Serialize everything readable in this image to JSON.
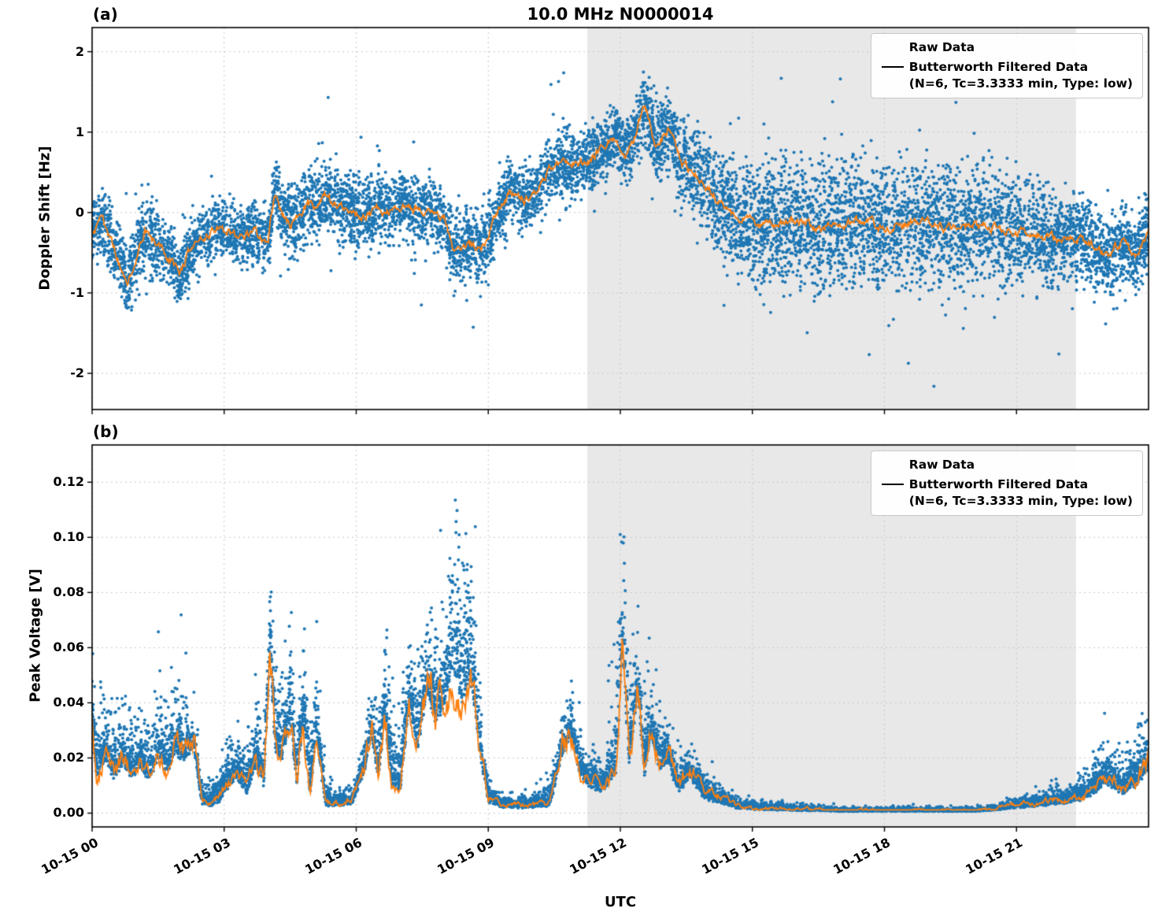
{
  "figure_title": "10.0 MHz N0000014",
  "xlabel": "UTC",
  "chart_data": [
    {
      "id": "a",
      "type": "scatter+line",
      "panel_label": "(a)",
      "title": "10.0 MHz N0000014",
      "ylabel": "Doppler Shift [Hz]",
      "xlabel": "",
      "xlim": [
        0,
        24
      ],
      "ylim": [
        -2.45,
        2.3
      ],
      "yticks": [
        -2,
        -1,
        0,
        1,
        2
      ],
      "ytick_labels": [
        "-2",
        "-1",
        "0",
        "1",
        "2"
      ],
      "xticks": [
        0,
        3,
        6,
        9,
        12,
        15,
        18,
        21
      ],
      "xtick_labels": [
        "10-15 00",
        "10-15 03",
        "10-15 06",
        "10-15 09",
        "10-15 12",
        "10-15 15",
        "10-15 18",
        "10-15 21"
      ],
      "grid": true,
      "legend_loc": "upper right",
      "shaded_region": {
        "start_h": 11.25,
        "end_h": 22.35
      },
      "legend": {
        "raw_label": "Raw Data",
        "filtered_label_line1": "Butterworth Filtered Data",
        "filtered_label_line2": "(N=6, Tc=3.3333 min, Type: low)"
      },
      "colors": {
        "raw": "#1f77b4",
        "filtered": "#ff7f0e",
        "shade": "rgba(128,128,128,0.18)",
        "grid": "#c8c8c8"
      },
      "line": {
        "t": [
          0.0,
          0.25,
          0.5,
          0.8,
          1.0,
          1.2,
          1.5,
          1.8,
          2.0,
          2.2,
          2.5,
          2.8,
          3.1,
          3.4,
          3.7,
          4.0,
          4.15,
          4.3,
          4.5,
          4.7,
          4.9,
          5.1,
          5.3,
          5.6,
          5.9,
          6.2,
          6.5,
          6.8,
          7.1,
          7.4,
          7.7,
          8.0,
          8.2,
          8.5,
          8.8,
          9.0,
          9.2,
          9.5,
          9.8,
          10.1,
          10.4,
          10.7,
          11.0,
          11.3,
          11.6,
          11.9,
          12.1,
          12.3,
          12.55,
          12.8,
          13.1,
          13.4,
          13.7,
          14.0,
          14.3,
          14.6,
          15.0,
          15.5,
          16.0,
          16.5,
          17.0,
          17.5,
          18.0,
          18.5,
          19.0,
          19.5,
          20.0,
          20.5,
          21.0,
          21.5,
          22.0,
          22.4,
          22.8,
          23.1,
          23.4,
          23.7,
          24.0
        ],
        "v": [
          -0.25,
          -0.1,
          -0.45,
          -0.9,
          -0.55,
          -0.25,
          -0.4,
          -0.6,
          -0.75,
          -0.5,
          -0.3,
          -0.2,
          -0.25,
          -0.3,
          -0.25,
          -0.35,
          0.3,
          0.0,
          -0.15,
          -0.05,
          0.15,
          0.05,
          0.2,
          0.1,
          0.0,
          -0.05,
          0.05,
          0.0,
          0.1,
          0.05,
          0.0,
          -0.1,
          -0.45,
          -0.4,
          -0.45,
          -0.3,
          0.0,
          0.25,
          0.15,
          0.3,
          0.55,
          0.65,
          0.6,
          0.65,
          0.8,
          0.95,
          0.75,
          0.9,
          1.35,
          0.85,
          1.05,
          0.6,
          0.5,
          0.3,
          0.1,
          -0.05,
          -0.1,
          -0.15,
          -0.1,
          -0.2,
          -0.15,
          -0.1,
          -0.2,
          -0.15,
          -0.1,
          -0.2,
          -0.15,
          -0.2,
          -0.25,
          -0.3,
          -0.35,
          -0.3,
          -0.45,
          -0.55,
          -0.35,
          -0.6,
          -0.25
        ]
      },
      "scatter_envelope": {
        "t": [
          0,
          1,
          2,
          3,
          4,
          5,
          6,
          7,
          8,
          9,
          10,
          11,
          12,
          12.6,
          13,
          14,
          15,
          16,
          17,
          18,
          19,
          20,
          21,
          22,
          23,
          24
        ],
        "spread": [
          0.25,
          0.35,
          0.3,
          0.25,
          0.3,
          0.35,
          0.35,
          0.3,
          0.3,
          0.35,
          0.3,
          0.3,
          0.3,
          0.35,
          0.35,
          0.45,
          0.55,
          0.55,
          0.55,
          0.55,
          0.55,
          0.55,
          0.5,
          0.4,
          0.35,
          0.35
        ]
      },
      "scatter_count": 9500,
      "line_noise": 0.07
    },
    {
      "id": "b",
      "type": "scatter+line",
      "panel_label": "(b)",
      "title": "",
      "ylabel": "Peak Voltage [V]",
      "xlabel": "UTC",
      "xlim": [
        0,
        24
      ],
      "ylim": [
        -0.005,
        0.1335
      ],
      "yticks": [
        0.0,
        0.02,
        0.04,
        0.06,
        0.08,
        0.1,
        0.12
      ],
      "ytick_labels": [
        "0.00",
        "0.02",
        "0.04",
        "0.06",
        "0.08",
        "0.10",
        "0.12"
      ],
      "xticks": [
        0,
        3,
        6,
        9,
        12,
        15,
        18,
        21
      ],
      "xtick_labels": [
        "10-15 00",
        "10-15 03",
        "10-15 06",
        "10-15 09",
        "10-15 12",
        "10-15 15",
        "10-15 18",
        "10-15 21"
      ],
      "grid": true,
      "legend_loc": "upper right",
      "shaded_region": {
        "start_h": 11.25,
        "end_h": 22.35
      },
      "legend": {
        "raw_label": "Raw Data",
        "filtered_label_line1": "Butterworth Filtered Data",
        "filtered_label_line2": "(N=6, Tc=3.3333 min, Type: low)"
      },
      "colors": {
        "raw": "#1f77b4",
        "filtered": "#ff7f0e",
        "shade": "rgba(128,128,128,0.18)",
        "grid": "#c8c8c8"
      },
      "line": {
        "t": [
          0.0,
          0.1,
          0.3,
          0.5,
          0.7,
          0.9,
          1.1,
          1.3,
          1.5,
          1.7,
          1.9,
          2.1,
          2.3,
          2.5,
          2.7,
          2.9,
          3.1,
          3.3,
          3.5,
          3.7,
          3.9,
          4.05,
          4.15,
          4.3,
          4.5,
          4.65,
          4.8,
          4.95,
          5.1,
          5.3,
          5.6,
          5.9,
          6.2,
          6.35,
          6.5,
          6.65,
          6.8,
          7.0,
          7.2,
          7.4,
          7.6,
          7.8,
          8.0,
          8.2,
          8.4,
          8.6,
          8.8,
          9.0,
          9.3,
          9.6,
          10.0,
          10.4,
          10.7,
          10.9,
          11.1,
          11.3,
          11.6,
          11.9,
          12.05,
          12.2,
          12.4,
          12.55,
          12.7,
          12.9,
          13.1,
          13.3,
          13.6,
          13.9,
          14.2,
          14.6,
          15.0,
          15.5,
          16.0,
          17.0,
          18.0,
          19.0,
          20.0,
          20.5,
          21.0,
          21.5,
          22.0,
          22.5,
          22.8,
          23.1,
          23.4,
          23.7,
          24.0
        ],
        "v": [
          0.032,
          0.016,
          0.02,
          0.014,
          0.02,
          0.015,
          0.018,
          0.014,
          0.022,
          0.016,
          0.024,
          0.02,
          0.026,
          0.005,
          0.004,
          0.006,
          0.012,
          0.015,
          0.009,
          0.018,
          0.012,
          0.06,
          0.025,
          0.02,
          0.035,
          0.012,
          0.037,
          0.008,
          0.03,
          0.004,
          0.004,
          0.005,
          0.018,
          0.03,
          0.014,
          0.037,
          0.012,
          0.01,
          0.04,
          0.025,
          0.045,
          0.035,
          0.04,
          0.055,
          0.042,
          0.05,
          0.025,
          0.006,
          0.003,
          0.003,
          0.003,
          0.004,
          0.025,
          0.03,
          0.015,
          0.012,
          0.01,
          0.015,
          0.058,
          0.02,
          0.045,
          0.015,
          0.03,
          0.018,
          0.02,
          0.01,
          0.015,
          0.008,
          0.006,
          0.003,
          0.002,
          0.0018,
          0.0015,
          0.001,
          0.001,
          0.001,
          0.001,
          0.0015,
          0.003,
          0.004,
          0.005,
          0.007,
          0.01,
          0.013,
          0.009,
          0.012,
          0.018
        ]
      },
      "scatter_envelope": {
        "t": [
          0,
          0.5,
          1,
          1.5,
          2,
          2.5,
          3,
          3.5,
          4,
          4.2,
          4.6,
          5,
          5.5,
          6,
          6.4,
          6.8,
          7.2,
          7.6,
          8.0,
          8.3,
          8.6,
          9,
          9.5,
          10,
          10.8,
          11.2,
          11.6,
          12.05,
          12.3,
          12.6,
          13,
          13.5,
          14,
          14.5,
          15,
          16,
          17,
          18,
          19,
          20,
          21,
          21.5,
          22,
          22.5,
          23,
          23.5,
          24
        ],
        "spread": [
          0.02,
          0.016,
          0.016,
          0.02,
          0.02,
          0.004,
          0.012,
          0.012,
          0.018,
          0.025,
          0.02,
          0.02,
          0.003,
          0.004,
          0.015,
          0.025,
          0.02,
          0.02,
          0.028,
          0.05,
          0.035,
          0.005,
          0.003,
          0.003,
          0.012,
          0.01,
          0.008,
          0.05,
          0.02,
          0.02,
          0.012,
          0.008,
          0.005,
          0.003,
          0.002,
          0.0015,
          0.001,
          0.001,
          0.001,
          0.001,
          0.002,
          0.003,
          0.004,
          0.006,
          0.012,
          0.01,
          0.015
        ]
      },
      "scatter_count": 10000,
      "line_noise_rel": 0.22,
      "line_noise_abs": 0.0006
    }
  ]
}
